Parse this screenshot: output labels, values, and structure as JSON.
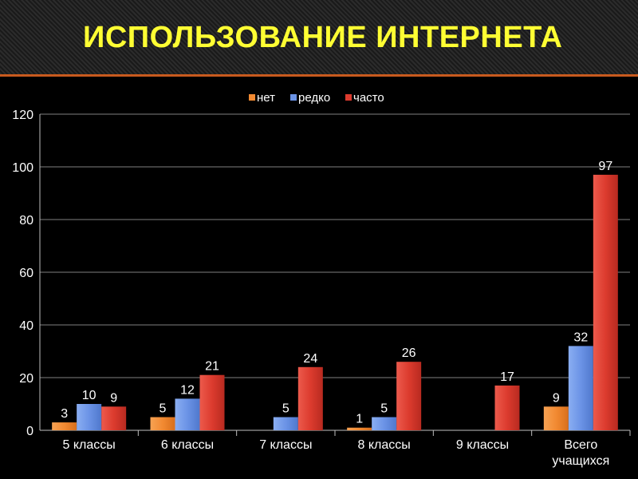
{
  "title": "ИСПОЛЬЗОВАНИЕ ИНТЕРНЕТА",
  "colors": {
    "title": "#ffff33",
    "rule": "#c85a1e",
    "net": "#f28a32",
    "redko": "#6b93e6",
    "chasto": "#dc3b2e"
  },
  "chart_data": {
    "type": "bar",
    "categories": [
      "5 классы",
      "6 классы",
      "7 классы",
      "8 классы",
      "9 классы",
      "Всего учащихся"
    ],
    "series": [
      {
        "name": "нет",
        "values": [
          3,
          5,
          null,
          1,
          null,
          9
        ]
      },
      {
        "name": "редко",
        "values": [
          10,
          12,
          5,
          5,
          null,
          32
        ]
      },
      {
        "name": "часто",
        "values": [
          9,
          21,
          24,
          26,
          17,
          97
        ]
      }
    ],
    "ylim": [
      0,
      120
    ],
    "yticks": [
      0,
      20,
      40,
      60,
      80,
      100,
      120
    ],
    "grid": true,
    "legend": "top-center",
    "xlabel": "",
    "ylabel": ""
  }
}
